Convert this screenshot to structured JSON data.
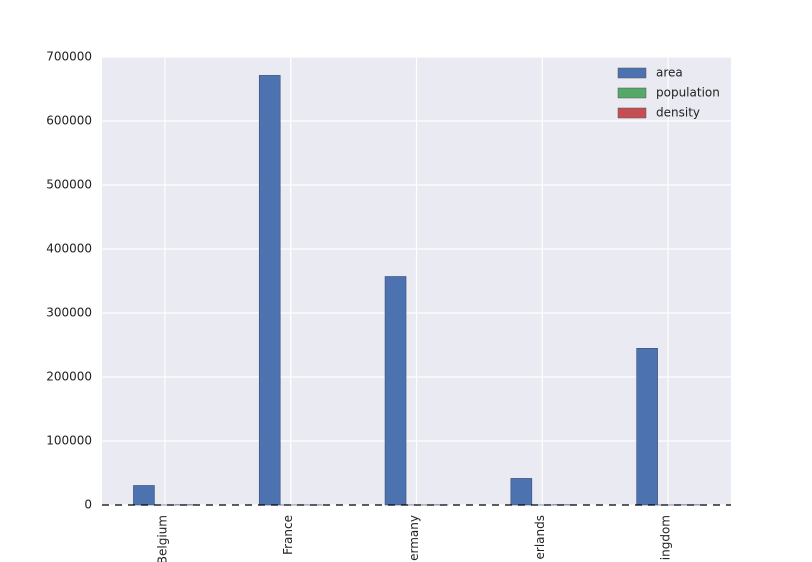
{
  "chart_data": {
    "type": "bar",
    "categories": [
      "Belgium",
      "France",
      "ermany",
      "erlands",
      "ingdom"
    ],
    "series": [
      {
        "name": "area",
        "color": "#4c72b0",
        "values": [
          30510,
          671308,
          357050,
          41526,
          244820
        ]
      },
      {
        "name": "population",
        "color": "#55a868",
        "values": [
          11.3,
          64.3,
          81.3,
          16.9,
          64.9
        ]
      },
      {
        "name": "density",
        "color": "#c44e52",
        "values": [
          370,
          96,
          227,
          405,
          265
        ]
      }
    ],
    "ylim": [
      0,
      700000
    ],
    "yticks": [
      0,
      100000,
      200000,
      300000,
      400000,
      500000,
      600000,
      700000
    ],
    "grid": true,
    "legend": "upper-right"
  }
}
